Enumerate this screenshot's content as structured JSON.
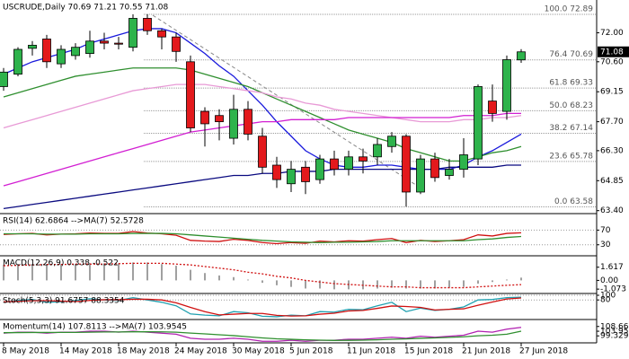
{
  "chart_data": [
    {
      "type": "candlestick",
      "title": "USCRUDE,Daily  70.69 71.21 70.55 71.08",
      "categories": [
        "8 May 2018",
        null,
        null,
        null,
        "14 May 2018",
        null,
        null,
        null,
        "18 May 2018",
        null,
        null,
        null,
        "24 May 2018",
        null,
        null,
        null,
        "30 May 2018",
        null,
        null,
        null,
        "5 Jun 2018",
        null,
        null,
        null,
        "11 Jun 2018",
        null,
        null,
        null,
        "15 Jun 2018",
        null,
        null,
        null,
        "21 Jun 2018",
        null,
        null,
        null,
        "27 Jun 2018"
      ],
      "open": [
        69.4,
        70.0,
        71.25,
        71.7,
        70.5,
        70.9,
        71.0,
        71.6,
        71.5,
        71.3,
        72.7,
        72.1,
        71.8,
        70.6,
        68.2,
        68.0,
        66.9,
        68.3,
        67.0,
        65.6,
        64.7,
        65.5,
        64.9,
        65.9,
        65.4,
        66.0,
        66.0,
        66.5,
        67.0,
        64.3,
        65.9,
        65.1,
        65.4,
        65.9,
        68.7,
        68.2,
        70.69
      ],
      "high": [
        70.3,
        71.3,
        71.6,
        71.9,
        71.4,
        71.5,
        72.1,
        72.0,
        71.8,
        72.9,
        72.9,
        72.2,
        72.0,
        70.9,
        68.4,
        68.3,
        69.0,
        68.7,
        67.4,
        66.0,
        65.8,
        65.8,
        66.1,
        66.3,
        66.3,
        66.4,
        66.9,
        67.2,
        67.1,
        66.1,
        66.2,
        65.9,
        66.9,
        69.5,
        69.5,
        70.9,
        71.21
      ],
      "low": [
        69.2,
        69.9,
        70.9,
        70.3,
        70.3,
        70.7,
        70.8,
        71.2,
        71.2,
        71.1,
        71.9,
        71.2,
        70.6,
        67.2,
        66.5,
        66.8,
        66.6,
        66.8,
        65.2,
        64.5,
        64.3,
        64.2,
        64.7,
        65.1,
        65.1,
        65.2,
        65.6,
        66.2,
        63.6,
        64.2,
        64.8,
        64.9,
        65.0,
        65.6,
        67.7,
        67.8,
        70.55
      ],
      "close": [
        70.1,
        71.2,
        71.4,
        70.6,
        71.2,
        71.3,
        71.6,
        71.5,
        71.45,
        72.7,
        72.1,
        71.8,
        71.1,
        67.4,
        67.6,
        67.7,
        68.3,
        67.1,
        65.5,
        64.9,
        65.4,
        64.8,
        65.9,
        65.4,
        66.0,
        65.8,
        66.6,
        67.0,
        64.3,
        65.9,
        65.0,
        65.4,
        66.1,
        69.4,
        68.1,
        70.7,
        71.08
      ],
      "up_color": "#2eb34c",
      "down_color": "#e3191c",
      "series": [
        {
          "color": "#1a1adc",
          "values": [
            70.0,
            70.3,
            70.6,
            70.8,
            71.0,
            71.2,
            71.5,
            71.7,
            71.9,
            72.1,
            72.2,
            72.2,
            72.0,
            71.5,
            71.0,
            70.4,
            69.9,
            69.2,
            68.5,
            67.7,
            67.0,
            66.3,
            65.9,
            65.6,
            65.5,
            65.5,
            65.6,
            65.6,
            65.5,
            65.4,
            65.4,
            65.4,
            65.6,
            66.0,
            66.3,
            66.7,
            67.1
          ]
        },
        {
          "color": "#2f8f2f",
          "values": [
            68.9,
            69.1,
            69.3,
            69.5,
            69.7,
            69.9,
            70.0,
            70.1,
            70.2,
            70.3,
            70.3,
            70.3,
            70.3,
            70.2,
            70.0,
            69.8,
            69.6,
            69.4,
            69.1,
            68.8,
            68.5,
            68.2,
            67.9,
            67.6,
            67.3,
            67.1,
            66.9,
            66.7,
            66.4,
            66.2,
            66.0,
            65.8,
            65.8,
            66.0,
            66.2,
            66.3,
            66.5
          ]
        },
        {
          "color": "#e89ad6",
          "values": [
            67.4,
            67.6,
            67.8,
            68.0,
            68.2,
            68.4,
            68.6,
            68.8,
            69.0,
            69.2,
            69.3,
            69.4,
            69.5,
            69.5,
            69.5,
            69.4,
            69.3,
            69.2,
            69.1,
            68.9,
            68.8,
            68.6,
            68.5,
            68.3,
            68.2,
            68.1,
            68.0,
            67.9,
            67.8,
            67.7,
            67.7,
            67.7,
            67.8,
            67.8,
            67.9,
            67.9,
            68.0
          ]
        },
        {
          "color": "#d21fd2",
          "values": [
            64.6,
            64.8,
            65.0,
            65.2,
            65.4,
            65.6,
            65.8,
            66.0,
            66.2,
            66.4,
            66.6,
            66.8,
            67.0,
            67.2,
            67.3,
            67.4,
            67.5,
            67.6,
            67.7,
            67.7,
            67.8,
            67.8,
            67.8,
            67.8,
            67.9,
            67.9,
            67.9,
            67.9,
            67.9,
            67.9,
            67.9,
            67.9,
            68.0,
            68.0,
            68.0,
            68.1,
            68.1
          ]
        },
        {
          "color": "#0a0a80",
          "values": [
            63.5,
            63.6,
            63.7,
            63.8,
            63.9,
            64.0,
            64.1,
            64.2,
            64.3,
            64.4,
            64.5,
            64.6,
            64.7,
            64.8,
            64.9,
            65.0,
            65.1,
            65.1,
            65.2,
            65.2,
            65.3,
            65.3,
            65.3,
            65.4,
            65.4,
            65.4,
            65.4,
            65.4,
            65.4,
            65.4,
            65.4,
            65.5,
            65.5,
            65.5,
            65.5,
            65.6,
            65.6
          ]
        }
      ],
      "fib_levels": [
        {
          "value": 72.89,
          "label": "100.0 72.89"
        },
        {
          "value": 70.69,
          "label": "76.4 70.69"
        },
        {
          "value": 69.33,
          "label": "61.8 69.33"
        },
        {
          "value": 68.23,
          "label": "50.0 68.23"
        },
        {
          "value": 67.14,
          "label": "38.2 67.14"
        },
        {
          "value": 65.78,
          "label": "23.6 65.78"
        },
        {
          "value": 63.58,
          "label": "0.0 63.58"
        }
      ],
      "last": 71.08,
      "ylim": [
        63.3,
        73.5
      ],
      "yticks": [
        {
          "value": 72,
          "label": "72.00"
        },
        {
          "value": 70.6,
          "label": "70.60"
        },
        69.15,
        {
          "value": 67.7,
          "label": "67.70"
        },
        {
          "value": 66.3,
          "label": "66.30"
        },
        64.85,
        {
          "value": 63.4,
          "label": "63.40"
        }
      ]
    },
    {
      "type": "line",
      "title": "RSI(14) 62.6864 -->MA(7) 52.5728",
      "ylim": [
        2.5,
        110
      ],
      "yticks": [
        70,
        30
      ],
      "grid": true,
      "series": [
        {
          "color": "#d01010",
          "values": [
            58,
            60,
            61,
            57,
            59,
            60,
            62,
            61,
            61,
            66,
            62,
            60,
            56,
            42,
            40,
            39,
            45,
            42,
            36,
            33,
            36,
            34,
            40,
            38,
            41,
            40,
            44,
            47,
            36,
            42,
            39,
            41,
            44,
            57,
            54,
            61,
            62.6864
          ]
        },
        {
          "color": "#2f8f2f",
          "values": [
            60,
            60,
            60,
            59,
            59,
            59,
            60,
            60,
            60,
            61,
            61,
            61,
            60,
            57,
            54,
            51,
            48,
            45,
            42,
            40,
            38,
            37,
            36,
            37,
            37,
            38,
            39,
            41,
            41,
            41,
            41,
            41,
            41,
            44,
            46,
            50,
            52.5728
          ]
        }
      ]
    },
    {
      "type": "macd",
      "title": "MACD(12,26,9) 0.338 -0.522",
      "ylim": [
        -1.5,
        2.8
      ],
      "yticks": [
        1.617,
        {
          "value": 0,
          "label": "0.00"
        },
        -1.073
      ],
      "color": "#a0a0a0",
      "values": [
        1.9,
        2.0,
        2.0,
        2.0,
        2.0,
        2.0,
        2.1,
        2.1,
        2.1,
        2.2,
        2.2,
        2.0,
        1.8,
        1.3,
        0.9,
        0.6,
        0.4,
        0.1,
        -0.3,
        -0.6,
        -0.8,
        -1.0,
        -1.0,
        -1.1,
        -1.1,
        -1.1,
        -1.0,
        -0.9,
        -1.0,
        -1.0,
        -1.0,
        -0.9,
        -0.8,
        -0.4,
        -0.2,
        0.1,
        0.338
      ],
      "series": [
        {
          "color": "#d01010",
          "values": [
            1.8,
            1.85,
            1.9,
            1.95,
            1.95,
            2.0,
            2.0,
            2.0,
            2.05,
            2.1,
            2.1,
            2.1,
            2.0,
            1.9,
            1.7,
            1.5,
            1.3,
            1.0,
            0.8,
            0.5,
            0.3,
            0.0,
            -0.2,
            -0.4,
            -0.5,
            -0.6,
            -0.7,
            -0.8,
            -0.8,
            -0.9,
            -0.9,
            -0.9,
            -0.9,
            -0.8,
            -0.7,
            -0.6,
            -0.522
          ]
        }
      ]
    },
    {
      "type": "line",
      "title": "Stoch(5,3,3) 91.6757 88.3354",
      "ylim": [
        0,
        100
      ],
      "yticks": [
        100,
        80
      ],
      "grid": true,
      "series": [
        {
          "color": "#20a0b0",
          "values": [
            70,
            78,
            82,
            70,
            72,
            78,
            85,
            80,
            78,
            90,
            80,
            70,
            55,
            20,
            15,
            12,
            30,
            25,
            10,
            8,
            15,
            12,
            30,
            28,
            40,
            38,
            55,
            70,
            30,
            45,
            35,
            40,
            50,
            80,
            82,
            90,
            91.6757
          ]
        },
        {
          "color": "#d01010",
          "values": [
            72,
            74,
            77,
            77,
            75,
            73,
            78,
            81,
            81,
            83,
            83,
            80,
            68,
            48,
            30,
            16,
            19,
            22,
            22,
            14,
            11,
            12,
            19,
            23,
            33,
            35,
            44,
            54,
            52,
            48,
            37,
            40,
            42,
            57,
            71,
            84,
            88.3354
          ]
        }
      ]
    },
    {
      "type": "line",
      "title": "Momentum(14) 107.8113 -->MA(7) 103.9545",
      "ylim": [
        93.3,
        113.8
      ],
      "yticks": [
        108.66,
        103.95,
        99.329
      ],
      "series": [
        {
          "color": "#b020b0",
          "values": [
            102,
            103,
            103,
            102,
            103,
            103,
            104,
            104,
            103,
            104,
            103,
            102,
            101,
            97,
            96,
            96,
            97,
            96,
            94,
            94,
            95,
            94,
            95,
            95,
            96,
            96,
            97,
            98,
            97,
            99,
            98,
            99,
            100,
            104,
            103,
            106,
            107.8113
          ]
        },
        {
          "color": "#2f8f2f",
          "values": [
            102.5,
            102.6,
            102.7,
            102.7,
            102.8,
            102.8,
            103,
            103.2,
            103.2,
            103.4,
            103.4,
            103.3,
            103,
            102.1,
            101.3,
            100.4,
            99.6,
            98.4,
            97.3,
            96.4,
            95.9,
            95.4,
            95.1,
            94.8,
            94.9,
            95.1,
            95.4,
            96,
            96.3,
            96.9,
            97.3,
            97.9,
            98.4,
            99.4,
            100,
            101,
            103.9545
          ]
        }
      ]
    }
  ]
}
